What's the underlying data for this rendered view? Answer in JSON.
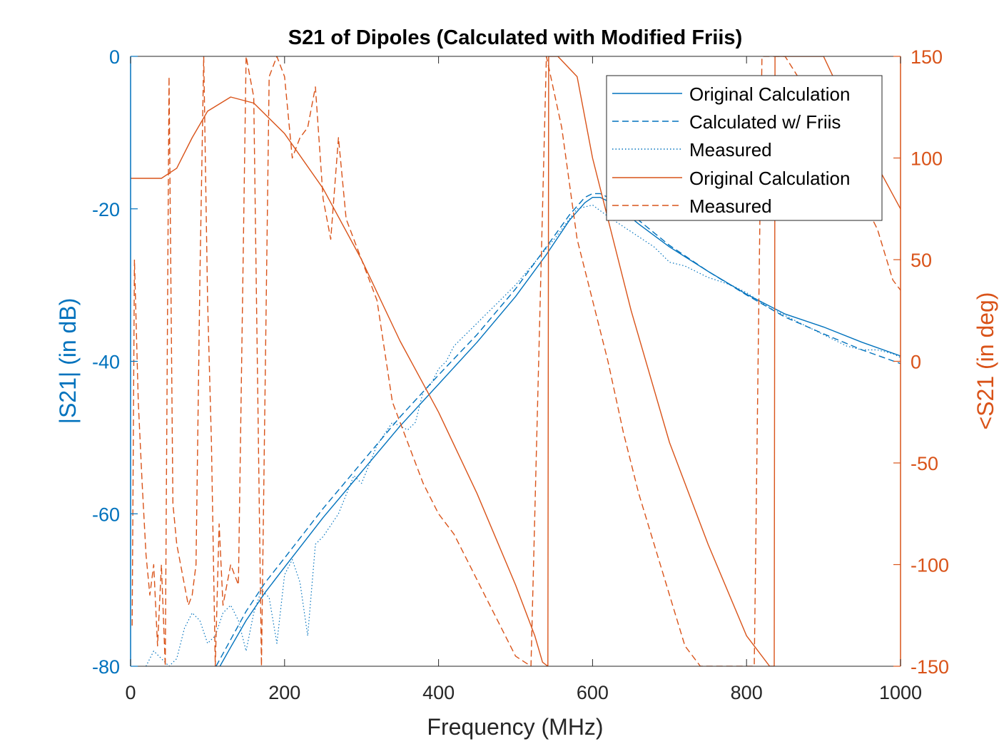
{
  "chart_data": {
    "type": "line",
    "title": "S21 of Dipoles (Calculated with Modified Friis)",
    "xlabel": "Frequency (MHz)",
    "ylabel_left": "|S21| (in dB)",
    "ylabel_right": "<S21 (in deg)",
    "xlim": [
      0,
      1000
    ],
    "ylim_left": [
      -80,
      0
    ],
    "ylim_right": [
      -150,
      150
    ],
    "xticks": [
      "0",
      "200",
      "400",
      "600",
      "800",
      "1000"
    ],
    "yticks_left": [
      "0",
      "-20",
      "-40",
      "-60",
      "-80"
    ],
    "yticks_right": [
      "150",
      "100",
      "50",
      "0",
      "-50",
      "-100",
      "-150"
    ],
    "grid": false,
    "legend_position": "top-right",
    "colors": {
      "left_axis": "#0072BD",
      "right_axis": "#D95319",
      "title": "#000000"
    },
    "series": [
      {
        "name": "Original Calculation",
        "axis": "left",
        "style": "solid",
        "x": [
          116,
          130,
          150,
          175,
          200,
          250,
          300,
          350,
          400,
          450,
          500,
          540,
          570,
          590,
          600,
          610,
          630,
          660,
          700,
          750,
          800,
          850,
          900,
          950,
          1000
        ],
        "y": [
          -80,
          -77.5,
          -74,
          -70.3,
          -67,
          -60.5,
          -54.5,
          -48.5,
          -43,
          -37.5,
          -31.5,
          -26,
          -21.5,
          -19.2,
          -18.5,
          -18.5,
          -19.5,
          -22,
          -25,
          -28.2,
          -31.2,
          -33.8,
          -35.5,
          -37.5,
          -39.3
        ]
      },
      {
        "name": "Calculated w/ Friis",
        "axis": "left",
        "style": "dashed",
        "x": [
          111,
          130,
          150,
          175,
          200,
          250,
          300,
          350,
          400,
          450,
          500,
          540,
          570,
          590,
          600,
          610,
          630,
          660,
          700,
          750,
          800,
          850,
          900,
          950,
          1000
        ],
        "y": [
          -80,
          -76.5,
          -72.8,
          -69,
          -65.8,
          -59.3,
          -53.3,
          -47.3,
          -41.8,
          -36.5,
          -30.5,
          -25,
          -20.8,
          -18.5,
          -18,
          -18,
          -19,
          -21.5,
          -24.8,
          -28.2,
          -31.3,
          -34.2,
          -36.4,
          -38.5,
          -40.3
        ]
      },
      {
        "name": "Measured",
        "axis": "left",
        "style": "dotted",
        "x": [
          20,
          30,
          40,
          50,
          60,
          70,
          80,
          90,
          100,
          110,
          120,
          130,
          140,
          150,
          160,
          170,
          180,
          190,
          200,
          210,
          220,
          230,
          240,
          250,
          270,
          290,
          300,
          320,
          340,
          360,
          370,
          380,
          390,
          400,
          410,
          420,
          450,
          500,
          550,
          580,
          600,
          620,
          650,
          680,
          700,
          720,
          750,
          780,
          800,
          830,
          850,
          870,
          900,
          930,
          950,
          970,
          990,
          1000
        ],
        "y": [
          -80,
          -78,
          -79,
          -80,
          -79,
          -75,
          -73,
          -74,
          -77,
          -76,
          -73,
          -72,
          -74,
          -78,
          -73,
          -70,
          -71,
          -77,
          -68,
          -66,
          -69,
          -76,
          -64,
          -63,
          -60,
          -55,
          -56,
          -51,
          -48,
          -49,
          -48,
          -44,
          -43,
          -41,
          -40,
          -38,
          -35,
          -30,
          -24,
          -20,
          -19.5,
          -21,
          -23,
          -25,
          -27,
          -27.5,
          -29,
          -30,
          -31,
          -33,
          -34,
          -35,
          -36.5,
          -38,
          -38.5,
          -38.5,
          -39,
          -39.5
        ]
      },
      {
        "name": "Original Calculation",
        "axis": "right",
        "style": "solid",
        "x": [
          0,
          40,
          60,
          80,
          100,
          130,
          160,
          200,
          250,
          300,
          350,
          400,
          450,
          500,
          525,
          535,
          542,
          543,
          555,
          580,
          600,
          650,
          700,
          750,
          800,
          830,
          836,
          837,
          850,
          900,
          950,
          1000
        ],
        "y": [
          90,
          90,
          95,
          110,
          123,
          130,
          127,
          112,
          85,
          50,
          10,
          -25,
          -65,
          -110,
          -135,
          -148,
          -150,
          150,
          150,
          140,
          100,
          25,
          -40,
          -90,
          -135,
          -150,
          -150,
          150,
          150,
          150,
          110,
          75
        ]
      },
      {
        "name": "Measured",
        "axis": "right",
        "style": "dashed",
        "x": [
          2,
          5,
          10,
          15,
          20,
          25,
          30,
          35,
          40,
          45,
          50,
          55,
          60,
          65,
          70,
          75,
          80,
          85,
          90,
          95,
          100,
          105,
          110,
          115,
          120,
          130,
          140,
          150,
          160,
          170,
          180,
          190,
          200,
          210,
          220,
          230,
          240,
          250,
          260,
          270,
          280,
          300,
          320,
          340,
          360,
          380,
          400,
          420,
          440,
          460,
          480,
          500,
          520,
          540,
          560,
          580,
          600,
          620,
          640,
          660,
          680,
          700,
          720,
          740,
          760,
          780,
          800,
          810,
          820,
          850,
          900,
          950,
          970,
          990,
          1000
        ],
        "y": [
          -130,
          50,
          -20,
          -60,
          -95,
          -115,
          -100,
          -140,
          -100,
          -150,
          140,
          -70,
          -90,
          -100,
          -110,
          -120,
          -115,
          -100,
          40,
          150,
          30,
          -40,
          -150,
          -80,
          -120,
          -100,
          -110,
          150,
          130,
          -150,
          140,
          150,
          140,
          100,
          110,
          115,
          135,
          80,
          60,
          110,
          70,
          50,
          30,
          -20,
          -40,
          -60,
          -75,
          -85,
          -100,
          -115,
          -130,
          -145,
          -150,
          150,
          115,
          60,
          30,
          0,
          -35,
          -65,
          -90,
          -115,
          -140,
          -150,
          -150,
          -150,
          -150,
          -150,
          150,
          150,
          120,
          80,
          65,
          40,
          35
        ]
      }
    ]
  }
}
